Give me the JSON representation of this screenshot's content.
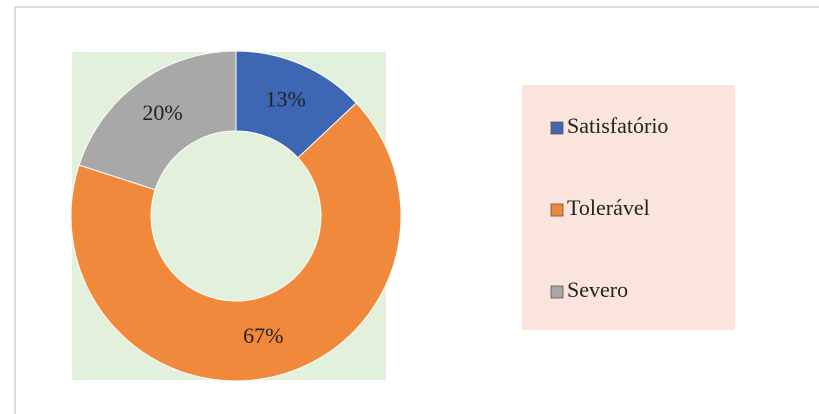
{
  "chart_data": {
    "type": "donut",
    "categories": [
      "Satisfatório",
      "Tolerável",
      "Severo"
    ],
    "values": [
      13,
      67,
      20
    ],
    "value_labels": [
      "13%",
      "67%",
      "20%"
    ],
    "colors": [
      "#3d66b3",
      "#f0893c",
      "#a8a8a8"
    ],
    "legend": "right"
  }
}
